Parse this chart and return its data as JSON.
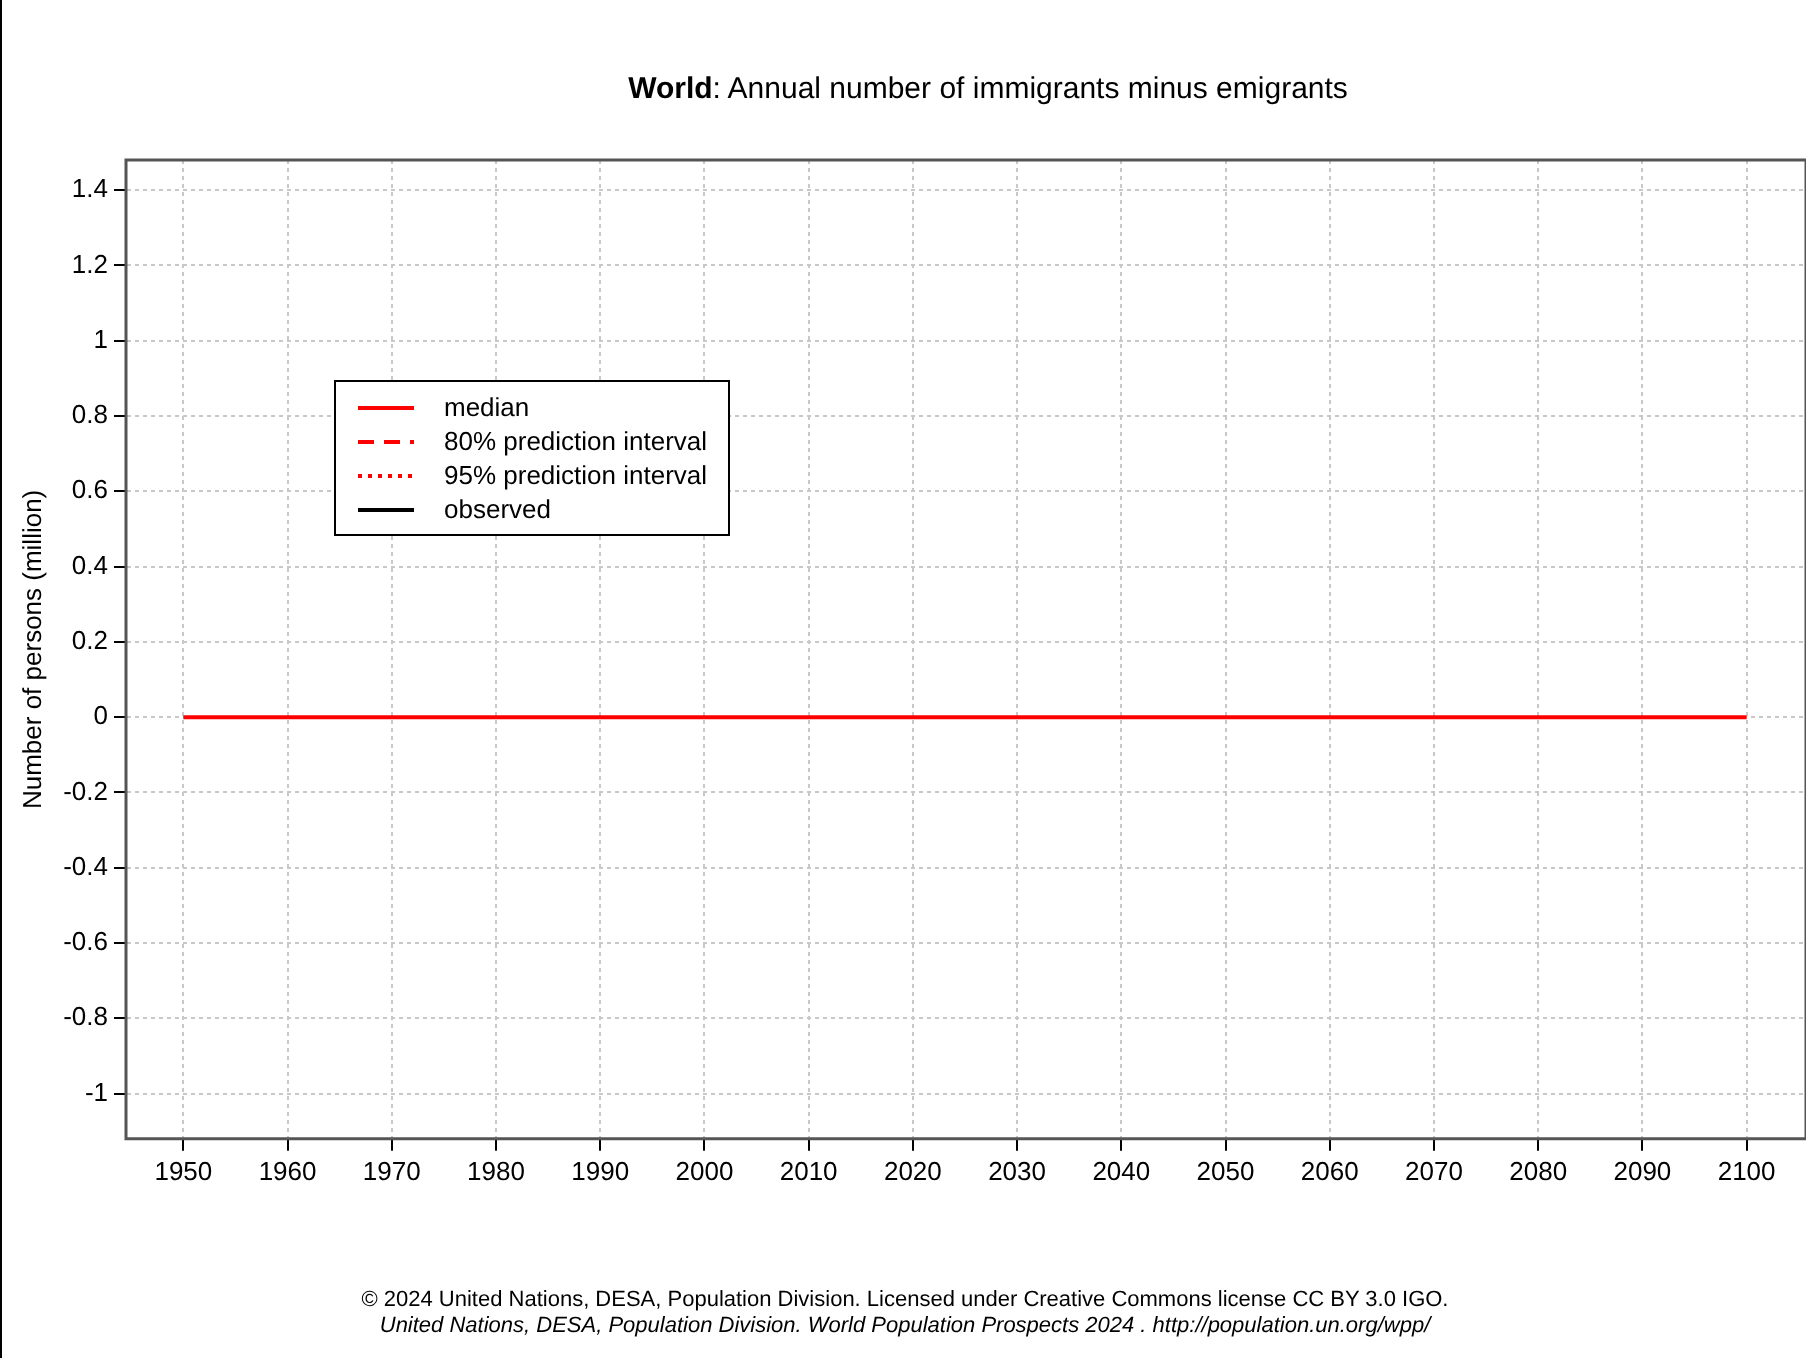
{
  "chart_data": {
    "type": "line",
    "title": "World: Annual number of immigrants minus emigrants",
    "ylabel": "Number of persons (million)",
    "xlim": [
      1944.5,
      2105.7
    ],
    "xticks": [
      1950,
      1960,
      1970,
      1980,
      1990,
      2000,
      2010,
      2020,
      2030,
      2040,
      2050,
      2060,
      2070,
      2080,
      2090,
      2100
    ],
    "ylim": [
      -1.12,
      1.48
    ],
    "yticks": [
      -1,
      -0.8,
      -0.6,
      -0.4,
      -0.2,
      0,
      0.2,
      0.4,
      0.6,
      0.8,
      1,
      1.2,
      1.4
    ],
    "grid": true,
    "legend": "top left",
    "marker": "none",
    "series": [
      {
        "name": "median",
        "color": "#ff0000",
        "line_style": "solid",
        "x": [
          1950,
          2100
        ],
        "values": [
          0,
          0
        ]
      },
      {
        "name": "80% prediction interval",
        "color": "#ff0000",
        "line_style": "dashed"
      },
      {
        "name": "95% prediction interval",
        "color": "#ff0000",
        "line_style": "dotted"
      },
      {
        "name": "observed",
        "color": "#000000",
        "line_style": "solid"
      }
    ],
    "annotations": [
      "© 2024 United Nations, DESA, Population Division. Licensed under Creative Commons license CC BY 3.0 IGO.",
      "United Nations, DESA, Population Division. World Population Prospects 2024 . http://population.un.org/wpp/"
    ]
  }
}
